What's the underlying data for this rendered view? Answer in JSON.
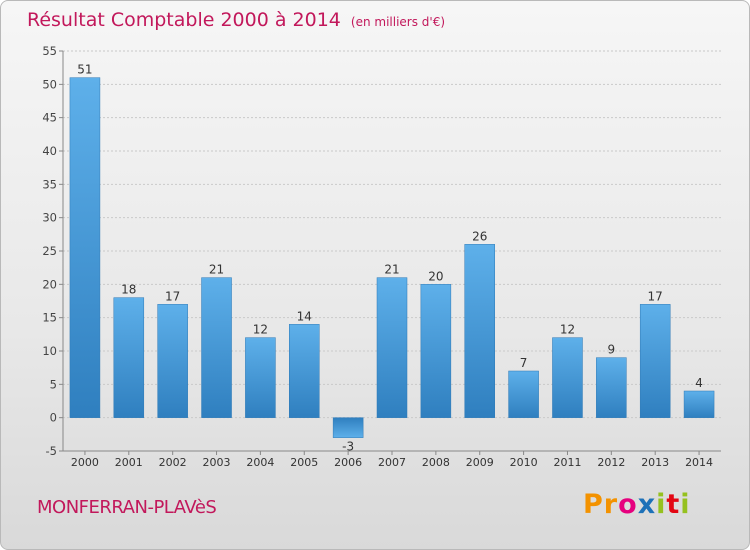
{
  "title": "Résultat Comptable 2000 à 2014",
  "subtitle": "(en milliers d'€)",
  "commune": "MONFERRAN-PLAVèS",
  "logo": {
    "letters": [
      "P",
      "r",
      "o",
      "x",
      "i",
      "t",
      "i"
    ],
    "colors": [
      "#f39200",
      "#f39200",
      "#e6007e",
      "#1d71b8",
      "#95c11f",
      "#e30613",
      "#95c11f"
    ]
  },
  "chart_data": {
    "type": "bar",
    "categories": [
      "2000",
      "2001",
      "2002",
      "2003",
      "2004",
      "2005",
      "2006",
      "2007",
      "2008",
      "2009",
      "2010",
      "2011",
      "2012",
      "2013",
      "2014"
    ],
    "values": [
      51,
      18,
      17,
      21,
      12,
      14,
      -3,
      21,
      20,
      26,
      7,
      12,
      9,
      17,
      4
    ],
    "ylim": [
      -5,
      55
    ],
    "yticks": [
      -5,
      0,
      5,
      10,
      15,
      20,
      25,
      30,
      35,
      40,
      45,
      50,
      55
    ],
    "grid": true,
    "bar_color": "#4a9ad8"
  }
}
